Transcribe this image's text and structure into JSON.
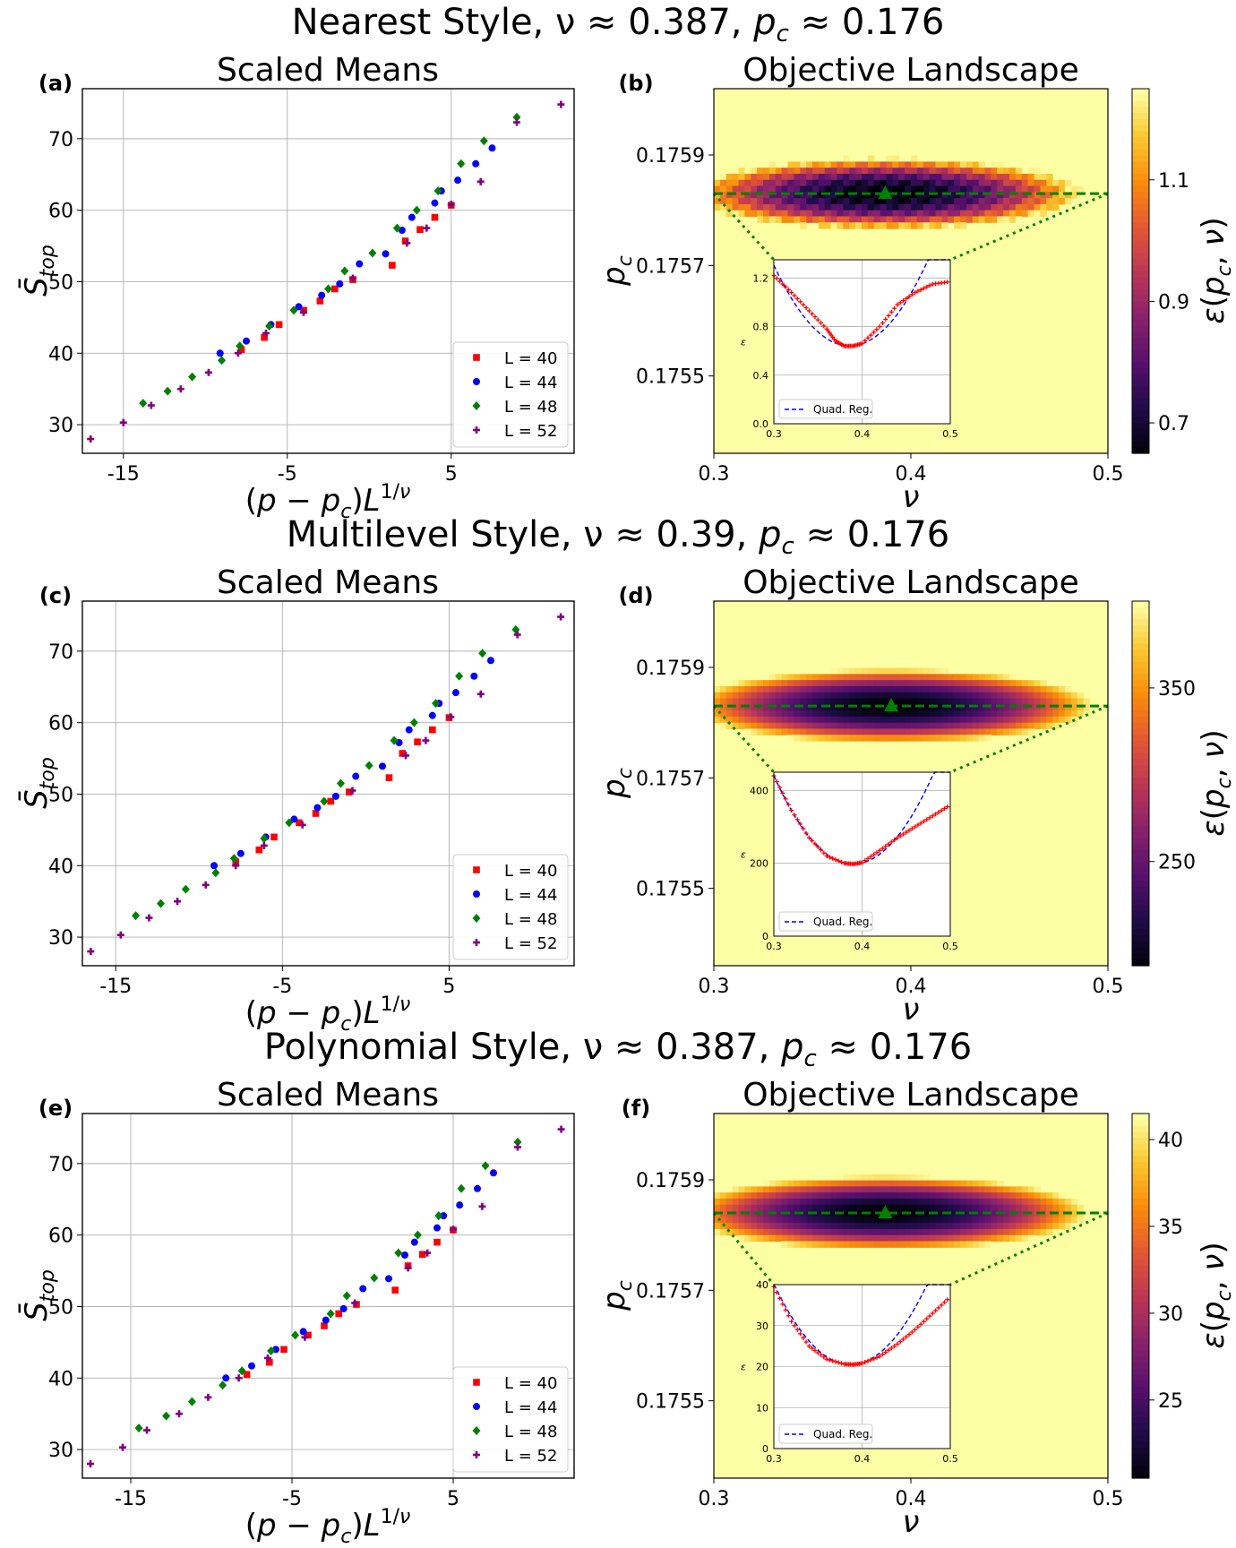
{
  "figure": {
    "rows": [
      {
        "suptitle": "Nearest Style, ν ≈ 0.387, p_c ≈ 0.176",
        "left": {
          "tag": "(a)",
          "title": "Scaled Means",
          "xticks": [
            "-15",
            "-5",
            "5"
          ],
          "yticks": [
            "30",
            "40",
            "50",
            "60",
            "70"
          ]
        },
        "right": {
          "tag": "(b)",
          "title": "Objective Landscape",
          "xticks": [
            "0.3",
            "0.4",
            "0.5"
          ],
          "yticks": [
            "0.1759",
            "0.1757",
            "0.1755"
          ],
          "colorbar_ticks": [
            "1.1",
            "0.9",
            "0.7"
          ],
          "inset_yticks": [
            "1.2",
            "0.8",
            "0.4",
            "0.0"
          ],
          "inset_xticks": [
            "0.3",
            "0.4",
            "0.5"
          ]
        }
      },
      {
        "suptitle": "Multilevel Style, ν ≈ 0.39, p_c ≈ 0.176",
        "left": {
          "tag": "(c)",
          "title": "Scaled Means",
          "xticks": [
            "-15",
            "-5",
            "5"
          ],
          "yticks": [
            "30",
            "40",
            "50",
            "60",
            "70"
          ]
        },
        "right": {
          "tag": "(d)",
          "title": "Objective Landscape",
          "xticks": [
            "0.3",
            "0.4",
            "0.5"
          ],
          "yticks": [
            "0.1759",
            "0.1757",
            "0.1755"
          ],
          "colorbar_ticks": [
            "350",
            "250"
          ],
          "inset_yticks": [
            "400",
            "200",
            "0"
          ],
          "inset_xticks": [
            "0.3",
            "0.4",
            "0.5"
          ]
        }
      },
      {
        "suptitle": "Polynomial Style, ν ≈ 0.387, p_c ≈ 0.176",
        "left": {
          "tag": "(e)",
          "title": "Scaled Means",
          "xticks": [
            "-15",
            "-5",
            "5"
          ],
          "yticks": [
            "30",
            "40",
            "50",
            "60",
            "70"
          ]
        },
        "right": {
          "tag": "(f)",
          "title": "Objective Landscape",
          "xticks": [
            "0.3",
            "0.4",
            "0.5"
          ],
          "yticks": [
            "0.1759",
            "0.1757",
            "0.1755"
          ],
          "colorbar_ticks": [
            "40",
            "35",
            "30",
            "25"
          ],
          "inset_yticks": [
            "40",
            "30",
            "20",
            "10",
            "0"
          ],
          "inset_xticks": [
            "0.3",
            "0.4",
            "0.5"
          ]
        }
      }
    ],
    "axis_labels": {
      "left_x": "(p − p_c)L^(1/ν)",
      "left_y": "S̄_top",
      "right_x": "ν",
      "right_y": "p_c",
      "colorbar": "ε(p_c, ν)",
      "inset_y": "ε"
    },
    "legend": [
      "L = 40",
      "L = 44",
      "L = 48",
      "L = 52"
    ],
    "inset_legend": "Quad. Reg.",
    "colors": {
      "L40": "#ff0000",
      "L44": "#0000ff",
      "L48": "#008000",
      "L52": "#800080",
      "green_line": "#008000",
      "quad_reg": "#0000ff",
      "inset_points": "#ff0000"
    }
  },
  "chart_data": [
    {
      "type": "scatter",
      "panel": "(a)",
      "title": "Scaled Means",
      "xlabel": "(p − p_c)L^(1/ν)",
      "ylabel": "S̄_top",
      "xlim": [
        -17.5,
        12.5
      ],
      "ylim": [
        26,
        77
      ],
      "grid": true,
      "legend_position": "lower right",
      "series": [
        {
          "name": "L = 40",
          "marker": "square",
          "x": [
            -7.8,
            -6.4,
            -5.5,
            -4.0,
            -3.0,
            -2.1,
            -1.0,
            1.4,
            2.2,
            3.1,
            4.0,
            5.0
          ],
          "y": [
            40.5,
            42.2,
            44.0,
            46.0,
            47.3,
            49.0,
            50.3,
            52.3,
            55.7,
            57.3,
            59.0,
            60.7
          ]
        },
        {
          "name": "L = 44",
          "marker": "circle",
          "x": [
            -9.1,
            -7.5,
            -6.0,
            -4.3,
            -2.9,
            -1.8,
            -0.6,
            1.0,
            2.0,
            2.6,
            4.0,
            4.4,
            5.4,
            6.5,
            7.5
          ],
          "y": [
            40.0,
            41.7,
            44.0,
            46.5,
            48.1,
            49.7,
            52.5,
            53.9,
            57.2,
            59.0,
            61.0,
            62.7,
            64.2,
            66.5,
            68.7
          ]
        },
        {
          "name": "L = 48",
          "marker": "diamond",
          "x": [
            -13.8,
            -12.3,
            -10.8,
            -9.0,
            -7.9,
            -6.1,
            -4.6,
            -2.5,
            -1.5,
            0.2,
            1.7,
            2.9,
            4.2,
            5.6,
            7.0,
            9.0
          ],
          "y": [
            33.0,
            34.7,
            36.7,
            39.0,
            41.0,
            43.8,
            46.0,
            49.0,
            51.5,
            54.0,
            57.5,
            60.0,
            62.7,
            66.5,
            69.7,
            73.0
          ]
        },
        {
          "name": "L = 52",
          "marker": "plus",
          "x": [
            -17.0,
            -15.0,
            -13.3,
            -11.5,
            -9.8,
            -8.0,
            -6.3,
            -4.0,
            -1.0,
            2.3,
            3.5,
            5.0,
            6.8,
            9.0,
            11.7
          ],
          "y": [
            28.0,
            30.3,
            32.7,
            35.0,
            37.3,
            40.0,
            42.8,
            45.7,
            50.5,
            55.4,
            57.5,
            60.8,
            64.0,
            72.3,
            74.8
          ]
        }
      ]
    },
    {
      "type": "heatmap",
      "panel": "(b)",
      "title": "Objective Landscape",
      "xlabel": "ν",
      "ylabel": "p_c",
      "colorbar_label": "ε(p_c, ν)",
      "colormap": "inferno",
      "xlim": [
        0.3,
        0.5
      ],
      "ylim": [
        0.17536,
        0.17602
      ],
      "minimum": {
        "nu": 0.387,
        "pc": 0.17583
      },
      "colorbar_range": [
        0.65,
        1.25
      ],
      "inset": {
        "xlim": [
          0.3,
          0.5
        ],
        "ylim": [
          0.0,
          1.35
        ],
        "points_x": [
          0.3,
          0.32,
          0.34,
          0.36,
          0.37,
          0.38,
          0.39,
          0.4,
          0.42,
          0.44,
          0.46,
          0.48,
          0.5
        ],
        "points_y": [
          1.22,
          1.08,
          0.93,
          0.78,
          0.68,
          0.64,
          0.64,
          0.66,
          0.8,
          0.98,
          1.08,
          1.15,
          1.17
        ],
        "quad_center": 0.386,
        "quad_min": 0.64,
        "quad_curvature": 90
      }
    },
    {
      "type": "scatter",
      "panel": "(c)",
      "title": "Scaled Means",
      "xlabel": "(p − p_c)L^(1/ν)",
      "ylabel": "S̄_top",
      "xlim": [
        -17.0,
        12.5
      ],
      "ylim": [
        26,
        77
      ],
      "grid": true,
      "legend_position": "lower right",
      "series": [
        {
          "name": "L = 40",
          "marker": "square",
          "x": [
            -7.8,
            -6.4,
            -5.5,
            -4.0,
            -3.0,
            -2.1,
            -1.0,
            1.4,
            2.2,
            3.1,
            4.0,
            5.0
          ],
          "y": [
            40.5,
            42.2,
            44.0,
            46.0,
            47.3,
            49.0,
            50.3,
            52.3,
            55.7,
            57.3,
            59.0,
            60.7
          ]
        },
        {
          "name": "L = 44",
          "marker": "circle",
          "x": [
            -9.1,
            -7.5,
            -6.0,
            -4.3,
            -2.9,
            -1.8,
            -0.6,
            1.0,
            2.0,
            2.6,
            4.0,
            4.4,
            5.4,
            6.5,
            7.5
          ],
          "y": [
            40.0,
            41.7,
            44.0,
            46.5,
            48.1,
            49.7,
            52.5,
            53.9,
            57.2,
            59.0,
            61.0,
            62.7,
            64.2,
            66.5,
            68.7
          ]
        },
        {
          "name": "L = 48",
          "marker": "diamond",
          "x": [
            -13.8,
            -12.3,
            -10.8,
            -9.0,
            -7.9,
            -6.1,
            -4.6,
            -2.5,
            -1.5,
            0.2,
            1.7,
            2.9,
            4.2,
            5.6,
            7.0,
            9.0
          ],
          "y": [
            33.0,
            34.7,
            36.7,
            39.0,
            41.0,
            43.8,
            46.0,
            49.0,
            51.5,
            54.0,
            57.5,
            60.0,
            62.7,
            66.5,
            69.7,
            73.0
          ]
        },
        {
          "name": "L = 52",
          "marker": "plus",
          "x": [
            -16.5,
            -14.7,
            -13.0,
            -11.3,
            -9.6,
            -7.8,
            -6.1,
            -3.8,
            -0.8,
            2.4,
            3.6,
            5.1,
            6.9,
            9.1,
            11.7
          ],
          "y": [
            28.0,
            30.3,
            32.7,
            35.0,
            37.3,
            40.0,
            42.8,
            45.7,
            50.5,
            55.4,
            57.5,
            60.8,
            64.0,
            72.3,
            74.8
          ]
        }
      ]
    },
    {
      "type": "heatmap",
      "panel": "(d)",
      "title": "Objective Landscape",
      "xlabel": "ν",
      "ylabel": "p_c",
      "colorbar_label": "ε(p_c, ν)",
      "colormap": "inferno",
      "xlim": [
        0.3,
        0.5
      ],
      "ylim": [
        0.17536,
        0.17602
      ],
      "minimum": {
        "nu": 0.39,
        "pc": 0.17583
      },
      "colorbar_range": [
        190,
        400
      ],
      "inset": {
        "xlim": [
          0.3,
          0.5
        ],
        "ylim": [
          0,
          450
        ],
        "points_x": [
          0.3,
          0.32,
          0.34,
          0.36,
          0.38,
          0.39,
          0.4,
          0.42,
          0.44,
          0.46,
          0.48,
          0.5
        ],
        "points_y": [
          440,
          345,
          270,
          220,
          200,
          198,
          202,
          235,
          270,
          300,
          330,
          360
        ],
        "quad_center": 0.39,
        "quad_min": 198,
        "quad_curvature": 30000
      }
    },
    {
      "type": "scatter",
      "panel": "(e)",
      "title": "Scaled Means",
      "xlabel": "(p − p_c)L^(1/ν)",
      "ylabel": "S̄_top",
      "xlim": [
        -18.0,
        12.5
      ],
      "ylim": [
        26,
        77
      ],
      "grid": true,
      "legend_position": "lower right",
      "series": [
        {
          "name": "L = 40",
          "marker": "square",
          "x": [
            -7.8,
            -6.4,
            -5.5,
            -4.0,
            -3.0,
            -2.1,
            -1.0,
            1.4,
            2.2,
            3.1,
            4.0,
            5.0
          ],
          "y": [
            40.5,
            42.2,
            44.0,
            46.0,
            47.3,
            49.0,
            50.3,
            52.3,
            55.7,
            57.3,
            59.0,
            60.7
          ]
        },
        {
          "name": "L = 44",
          "marker": "circle",
          "x": [
            -9.1,
            -7.5,
            -6.0,
            -4.3,
            -2.9,
            -1.8,
            -0.6,
            1.0,
            2.0,
            2.6,
            4.0,
            4.4,
            5.4,
            6.5,
            7.5
          ],
          "y": [
            40.0,
            41.7,
            44.0,
            46.5,
            48.1,
            49.7,
            52.5,
            53.9,
            57.2,
            59.0,
            61.0,
            62.7,
            64.2,
            66.5,
            68.7
          ]
        },
        {
          "name": "L = 48",
          "marker": "diamond",
          "x": [
            -14.5,
            -12.8,
            -11.2,
            -9.3,
            -8.1,
            -6.3,
            -4.8,
            -2.6,
            -1.6,
            0.1,
            1.6,
            2.8,
            4.1,
            5.5,
            7.0,
            9.0
          ],
          "y": [
            33.0,
            34.7,
            36.7,
            39.0,
            41.0,
            43.8,
            46.0,
            49.0,
            51.5,
            54.0,
            57.5,
            60.0,
            62.7,
            66.5,
            69.7,
            73.0
          ]
        },
        {
          "name": "L = 52",
          "marker": "plus",
          "x": [
            -17.5,
            -15.5,
            -14.0,
            -12.0,
            -10.2,
            -8.3,
            -6.5,
            -4.2,
            -1.1,
            2.2,
            3.4,
            5.0,
            6.8,
            9.0,
            11.7
          ],
          "y": [
            28.0,
            30.3,
            32.7,
            35.0,
            37.3,
            40.0,
            42.8,
            45.7,
            50.5,
            55.4,
            57.5,
            60.8,
            64.0,
            72.3,
            74.8
          ]
        }
      ]
    },
    {
      "type": "heatmap",
      "panel": "(f)",
      "title": "Objective Landscape",
      "xlabel": "ν",
      "ylabel": "p_c",
      "colorbar_label": "ε(p_c, ν)",
      "colormap": "inferno",
      "xlim": [
        0.3,
        0.5
      ],
      "ylim": [
        0.17536,
        0.17602
      ],
      "minimum": {
        "nu": 0.387,
        "pc": 0.17584
      },
      "colorbar_range": [
        20.5,
        41.5
      ],
      "inset": {
        "xlim": [
          0.3,
          0.5
        ],
        "ylim": [
          0,
          40
        ],
        "points_x": [
          0.3,
          0.32,
          0.34,
          0.36,
          0.38,
          0.39,
          0.4,
          0.42,
          0.44,
          0.46,
          0.48,
          0.5
        ],
        "points_y": [
          39.5,
          31,
          25,
          21.8,
          20.6,
          20.5,
          20.8,
          22.5,
          25.5,
          29,
          33,
          37
        ],
        "quad_center": 0.387,
        "quad_min": 20.5,
        "quad_curvature": 2600
      }
    }
  ]
}
